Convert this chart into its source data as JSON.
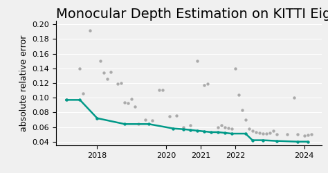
{
  "title": "Monocular Depth Estimation on KITTI Eigen spli",
  "ylabel": "absolute relative error",
  "ylim": [
    0.035,
    0.205
  ],
  "yticks": [
    0.04,
    0.06,
    0.08,
    0.1,
    0.12,
    0.14,
    0.16,
    0.18,
    0.2
  ],
  "xlim": [
    2016.8,
    2024.5
  ],
  "xticks": [
    2018,
    2020,
    2021,
    2022,
    2024
  ],
  "teal_color": "#009988",
  "gray_color": "#aaaaaa",
  "teal_line": [
    [
      2017.1,
      0.097
    ],
    [
      2017.5,
      0.097
    ],
    [
      2018.0,
      0.072
    ],
    [
      2018.8,
      0.064
    ],
    [
      2019.5,
      0.064
    ],
    [
      2020.2,
      0.058
    ],
    [
      2020.5,
      0.057
    ],
    [
      2020.7,
      0.056
    ],
    [
      2020.9,
      0.055
    ],
    [
      2021.1,
      0.054
    ],
    [
      2021.3,
      0.053
    ],
    [
      2021.5,
      0.053
    ],
    [
      2021.7,
      0.052
    ],
    [
      2021.9,
      0.051
    ],
    [
      2022.3,
      0.051
    ],
    [
      2022.5,
      0.042
    ],
    [
      2022.8,
      0.042
    ],
    [
      2023.2,
      0.041
    ],
    [
      2023.8,
      0.04
    ],
    [
      2024.1,
      0.04
    ]
  ],
  "gray_dots": [
    [
      2017.1,
      0.097
    ],
    [
      2017.5,
      0.14
    ],
    [
      2017.6,
      0.106
    ],
    [
      2017.8,
      0.192
    ],
    [
      2018.0,
      0.072
    ],
    [
      2018.1,
      0.15
    ],
    [
      2018.2,
      0.134
    ],
    [
      2018.3,
      0.126
    ],
    [
      2018.4,
      0.135
    ],
    [
      2018.6,
      0.119
    ],
    [
      2018.7,
      0.12
    ],
    [
      2018.8,
      0.094
    ],
    [
      2018.9,
      0.093
    ],
    [
      2019.0,
      0.098
    ],
    [
      2019.1,
      0.088
    ],
    [
      2019.2,
      0.064
    ],
    [
      2019.4,
      0.07
    ],
    [
      2019.6,
      0.069
    ],
    [
      2019.8,
      0.111
    ],
    [
      2019.9,
      0.111
    ],
    [
      2020.1,
      0.075
    ],
    [
      2020.3,
      0.076
    ],
    [
      2020.5,
      0.06
    ],
    [
      2020.7,
      0.062
    ],
    [
      2020.9,
      0.15
    ],
    [
      2021.1,
      0.117
    ],
    [
      2021.2,
      0.119
    ],
    [
      2021.5,
      0.06
    ],
    [
      2021.6,
      0.062
    ],
    [
      2021.7,
      0.06
    ],
    [
      2021.8,
      0.059
    ],
    [
      2021.9,
      0.058
    ],
    [
      2022.0,
      0.14
    ],
    [
      2022.1,
      0.104
    ],
    [
      2022.2,
      0.083
    ],
    [
      2022.3,
      0.07
    ],
    [
      2022.4,
      0.058
    ],
    [
      2022.5,
      0.055
    ],
    [
      2022.6,
      0.053
    ],
    [
      2022.7,
      0.052
    ],
    [
      2022.8,
      0.051
    ],
    [
      2022.9,
      0.051
    ],
    [
      2023.0,
      0.052
    ],
    [
      2023.1,
      0.055
    ],
    [
      2023.2,
      0.05
    ],
    [
      2023.5,
      0.05
    ],
    [
      2023.7,
      0.1
    ],
    [
      2023.8,
      0.05
    ],
    [
      2024.0,
      0.048
    ],
    [
      2024.1,
      0.049
    ],
    [
      2024.2,
      0.05
    ]
  ],
  "background_color": "#f0f0f0",
  "title_fontsize": 14,
  "ylabel_fontsize": 9
}
